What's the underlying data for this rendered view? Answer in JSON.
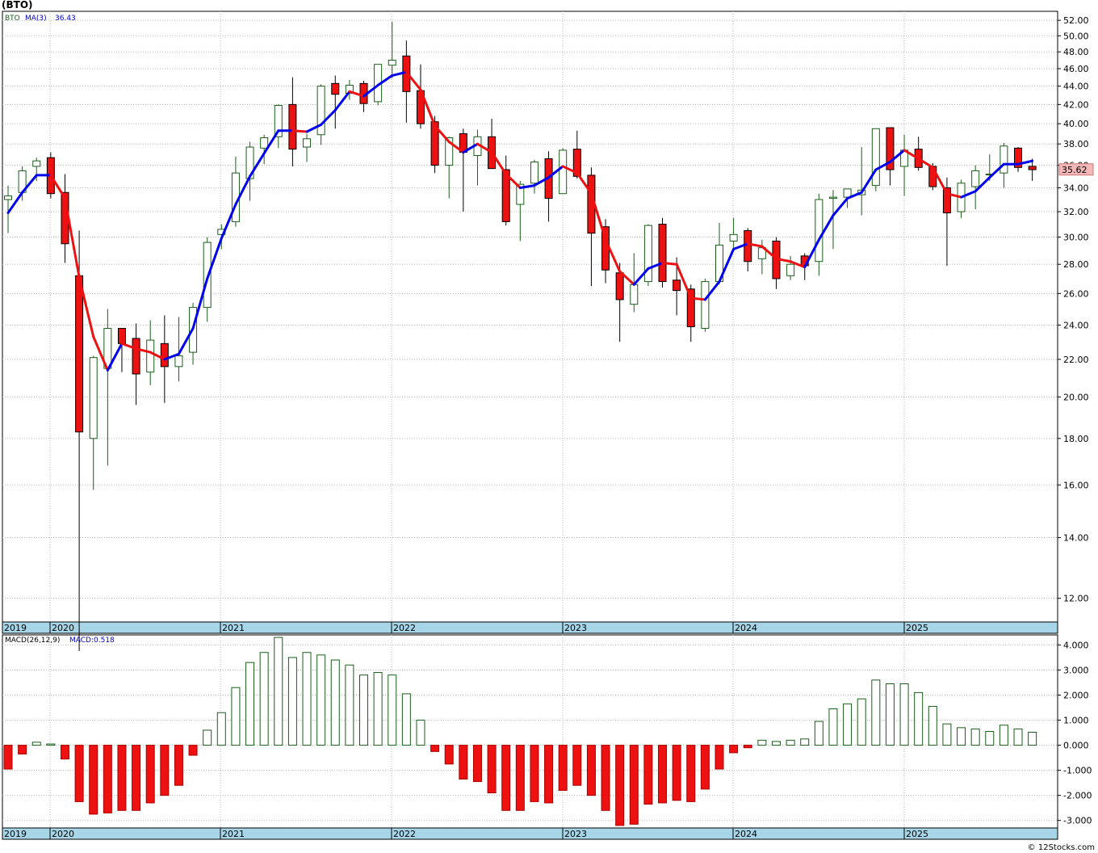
{
  "title": "(BTO)",
  "copyright": "© 12Stocks.com",
  "colors": {
    "up_candle_stroke": "#1a5e1a",
    "down_candle_fill": "#ee1111",
    "ma_up": "#0000ee",
    "ma_down": "#ee1111",
    "grid": "#b8b8b8",
    "time_axis_band": "#a6d6e8",
    "price_label_bg": "#f4b8b8"
  },
  "chart_data": [
    {
      "type": "candlestick",
      "symbol": "BTO",
      "legend": {
        "symbol": "BTO",
        "indicator": "MA(3)",
        "indicator_value": "36.43"
      },
      "scale": "log",
      "ylim": [
        11.3,
        53.2
      ],
      "yticks": [
        "12.00",
        "14.00",
        "16.00",
        "18.00",
        "20.00",
        "22.00",
        "24.00",
        "26.00",
        "28.00",
        "30.00",
        "32.00",
        "34.00",
        "36.00",
        "38.00",
        "40.00",
        "42.00",
        "44.00",
        "46.00",
        "48.00",
        "50.00",
        "52.00"
      ],
      "x_year_labels": [
        "2019",
        "2020",
        "2021",
        "2022",
        "2023",
        "2024",
        "2025"
      ],
      "last_price_label": "35.62",
      "ohlc": [
        [
          33.0,
          34.2,
          30.3,
          33.3
        ],
        [
          33.6,
          35.9,
          32.9,
          35.5
        ],
        [
          35.9,
          36.7,
          34.6,
          36.4
        ],
        [
          36.7,
          37.2,
          33.1,
          33.5
        ],
        [
          33.6,
          35.2,
          28.1,
          29.5
        ],
        [
          27.2,
          30.5,
          10.5,
          18.3
        ],
        [
          18.0,
          22.2,
          15.8,
          22.1
        ],
        [
          21.5,
          25.0,
          16.8,
          23.8
        ],
        [
          23.8,
          23.8,
          21.3,
          22.9
        ],
        [
          23.2,
          24.1,
          19.6,
          21.2
        ],
        [
          21.3,
          24.3,
          20.6,
          23.1
        ],
        [
          22.9,
          24.6,
          19.7,
          21.6
        ],
        [
          21.6,
          24.5,
          20.8,
          22.2
        ],
        [
          22.4,
          25.4,
          21.7,
          25.1
        ],
        [
          25.1,
          30.0,
          24.2,
          29.6
        ],
        [
          30.2,
          31.0,
          29.1,
          30.6
        ],
        [
          31.2,
          36.8,
          30.8,
          35.3
        ],
        [
          34.8,
          38.2,
          32.9,
          37.7
        ],
        [
          37.6,
          38.9,
          36.1,
          38.6
        ],
        [
          38.7,
          42.0,
          37.6,
          41.9
        ],
        [
          42.0,
          45.0,
          35.9,
          37.5
        ],
        [
          37.7,
          39.0,
          36.3,
          38.5
        ],
        [
          38.9,
          44.2,
          37.9,
          44.0
        ],
        [
          44.3,
          45.2,
          39.5,
          43.1
        ],
        [
          43.2,
          44.7,
          42.5,
          44.1
        ],
        [
          44.3,
          44.6,
          41.2,
          42.1
        ],
        [
          42.3,
          46.2,
          41.9,
          46.5
        ],
        [
          46.4,
          51.8,
          44.9,
          47.0
        ],
        [
          47.5,
          49.4,
          40.1,
          43.4
        ],
        [
          43.5,
          46.5,
          39.5,
          40.0
        ],
        [
          40.2,
          40.8,
          35.3,
          36.0
        ],
        [
          36.0,
          38.7,
          33.1,
          38.6
        ],
        [
          39.0,
          39.5,
          32.0,
          37.2
        ],
        [
          36.9,
          39.4,
          34.2,
          38.7
        ],
        [
          38.7,
          40.5,
          35.9,
          35.7
        ],
        [
          35.6,
          36.9,
          30.9,
          31.2
        ],
        [
          32.6,
          34.6,
          29.7,
          34.3
        ],
        [
          34.4,
          36.5,
          33.5,
          36.3
        ],
        [
          36.6,
          37.3,
          31.2,
          33.1
        ],
        [
          33.5,
          37.6,
          33.5,
          37.4
        ],
        [
          37.5,
          39.3,
          34.8,
          35.0
        ],
        [
          35.1,
          35.8,
          26.5,
          30.3
        ],
        [
          30.8,
          31.4,
          26.7,
          27.6
        ],
        [
          27.4,
          28.1,
          23.0,
          25.6
        ],
        [
          25.3,
          28.8,
          24.8,
          26.6
        ],
        [
          26.8,
          31.0,
          26.5,
          30.9
        ],
        [
          31.0,
          31.5,
          26.4,
          26.8
        ],
        [
          26.9,
          28.5,
          24.6,
          26.2
        ],
        [
          26.3,
          26.6,
          23.0,
          23.9
        ],
        [
          23.8,
          27.0,
          23.6,
          26.8
        ],
        [
          26.8,
          31.1,
          26.6,
          29.4
        ],
        [
          29.7,
          31.5,
          29.2,
          30.2
        ],
        [
          30.5,
          30.7,
          27.5,
          28.2
        ],
        [
          28.4,
          29.8,
          27.3,
          29.2
        ],
        [
          29.7,
          30.0,
          26.3,
          27.0
        ],
        [
          27.2,
          28.6,
          26.9,
          28.0
        ],
        [
          28.6,
          28.8,
          26.9,
          27.9
        ],
        [
          28.2,
          33.5,
          27.2,
          33.0
        ],
        [
          33.1,
          33.8,
          29.1,
          33.2
        ],
        [
          33.2,
          33.9,
          32.3,
          33.9
        ],
        [
          33.4,
          37.7,
          31.7,
          33.8
        ],
        [
          34.2,
          39.5,
          33.7,
          39.5
        ],
        [
          39.6,
          39.6,
          34.2,
          35.6
        ],
        [
          35.9,
          38.9,
          33.3,
          37.4
        ],
        [
          37.5,
          38.7,
          35.5,
          35.8
        ],
        [
          35.9,
          36.2,
          33.8,
          34.1
        ],
        [
          34.0,
          34.9,
          27.9,
          31.9
        ],
        [
          32.0,
          34.7,
          31.5,
          34.4
        ],
        [
          34.1,
          36.0,
          32.2,
          35.5
        ],
        [
          35.2,
          37.0,
          34.6,
          35.2
        ],
        [
          35.3,
          38.1,
          34.0,
          37.8
        ],
        [
          37.6,
          37.7,
          35.4,
          35.8
        ],
        [
          35.9,
          36.6,
          34.6,
          35.6
        ]
      ],
      "ma3": [
        31.9,
        33.6,
        35.1,
        35.1,
        33.1,
        27.1,
        23.3,
        21.4,
        22.9,
        22.6,
        22.4,
        22.0,
        22.3,
        23.8,
        27.0,
        29.9,
        32.6,
        35.0,
        37.1,
        39.3,
        39.3,
        39.2,
        39.9,
        41.4,
        43.4,
        42.9,
        44.1,
        45.2,
        45.6,
        43.6,
        39.8,
        38.2,
        37.2,
        38.0,
        37.2,
        35.2,
        34.0,
        34.2,
        34.9,
        35.9,
        35.3,
        33.5,
        29.8,
        27.5,
        26.6,
        27.7,
        28.1,
        28.0,
        25.7,
        25.6,
        26.8,
        29.1,
        29.5,
        29.3,
        28.4,
        28.2,
        27.8,
        29.8,
        31.7,
        33.1,
        33.6,
        35.6,
        36.3,
        37.4,
        36.6,
        35.8,
        33.5,
        33.2,
        33.7,
        34.9,
        36.1,
        36.1,
        36.4
      ]
    },
    {
      "type": "bar",
      "name": "MACD",
      "legend": {
        "indicator": "MACD(26,12,9)",
        "value_label": "MACD:0.518"
      },
      "ylim": [
        -3.3,
        4.4
      ],
      "yticks": [
        "-3.000",
        "-2.000",
        "-1.000",
        "0.000",
        "1.000",
        "2.000",
        "3.000",
        "4.000"
      ],
      "x_year_labels": [
        "2019",
        "2020",
        "2021",
        "2022",
        "2023",
        "2024",
        "2025"
      ],
      "values": [
        -0.95,
        -0.35,
        0.12,
        0.05,
        -0.55,
        -2.25,
        -2.75,
        -2.7,
        -2.6,
        -2.6,
        -2.3,
        -2.0,
        -1.6,
        -0.4,
        0.6,
        1.3,
        2.3,
        3.3,
        3.7,
        4.3,
        3.5,
        3.7,
        3.6,
        3.4,
        3.2,
        2.8,
        2.9,
        2.8,
        2.05,
        1.0,
        -0.25,
        -0.75,
        -1.35,
        -1.45,
        -1.9,
        -2.6,
        -2.6,
        -2.25,
        -2.3,
        -1.8,
        -1.6,
        -2.0,
        -2.6,
        -3.2,
        -3.15,
        -2.35,
        -2.3,
        -2.2,
        -2.25,
        -1.75,
        -0.95,
        -0.3,
        -0.1,
        0.2,
        0.15,
        0.2,
        0.25,
        0.95,
        1.45,
        1.65,
        1.85,
        2.6,
        2.45,
        2.45,
        2.1,
        1.55,
        0.85,
        0.7,
        0.65,
        0.55,
        0.8,
        0.65,
        0.518
      ]
    }
  ]
}
